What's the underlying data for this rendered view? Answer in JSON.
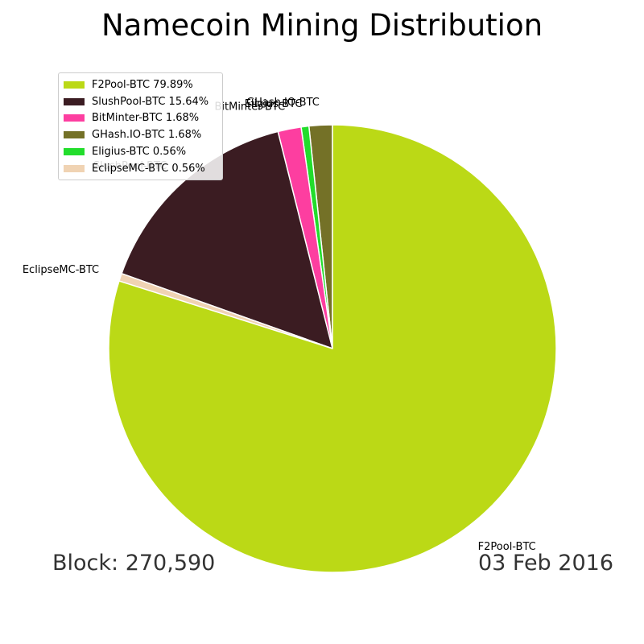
{
  "title": "Namecoin Mining Distribution",
  "footer": {
    "block": "Block: 270,590",
    "date": "03 Feb 2016"
  },
  "chart_data": {
    "type": "pie",
    "title": "Namecoin Mining Distribution",
    "start_angle_deg": 90,
    "direction": "counterclockwise",
    "legend_placement": "top-left",
    "slices": [
      {
        "label": "GHash.IO-BTC",
        "legend": "GHash.IO-BTC 1.68%",
        "value": 1.68,
        "color": "#747127"
      },
      {
        "label": "Eligius-BTC",
        "legend": "Eligius-BTC 0.56%",
        "value": 0.56,
        "color": "#22dd2c"
      },
      {
        "label": "BitMinter-BTC",
        "legend": "BitMinter-BTC 1.68%",
        "value": 1.68,
        "color": "#fd3ea0"
      },
      {
        "label": "SlushPool-BTC",
        "legend": "SlushPool-BTC 15.64%",
        "value": 15.64,
        "color": "#3b1c22"
      },
      {
        "label": "EclipseMC-BTC",
        "legend": "EclipseMC-BTC 0.56%",
        "value": 0.56,
        "color": "#f0d3b3"
      },
      {
        "label": "F2Pool-BTC",
        "legend": "F2Pool-BTC 79.89%",
        "value": 79.89,
        "color": "#bbd916"
      }
    ],
    "legend_order": [
      "F2Pool-BTC",
      "SlushPool-BTC",
      "BitMinter-BTC",
      "GHash.IO-BTC",
      "Eligius-BTC",
      "EclipseMC-BTC"
    ]
  }
}
